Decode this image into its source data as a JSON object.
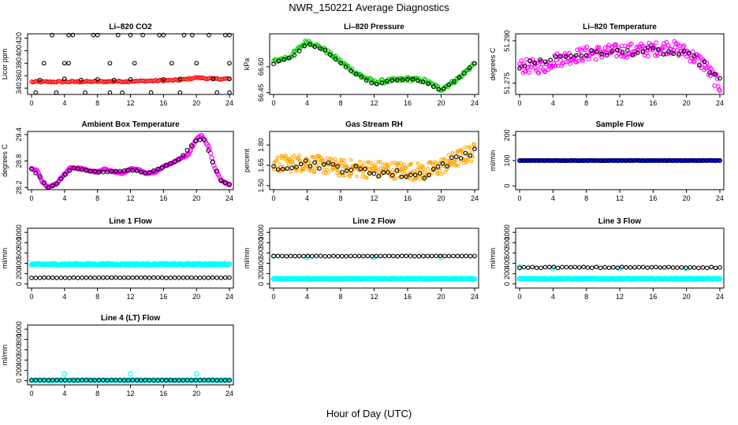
{
  "figure": {
    "title": "NWR_150221  Average Diagnostics",
    "xlabel": "Hour of Day (UTC)",
    "colors": {
      "red": "#ff0000",
      "green": "#00cc00",
      "magenta": "#ff00ff",
      "orange": "#ffa500",
      "blue": "#0000ff",
      "cyan": "#00ffff",
      "black": "#000000"
    }
  },
  "chart_data": [
    {
      "type": "scatter",
      "title": "Li-820 CO2",
      "ylabel": "Licor ppm",
      "xlim": [
        0,
        24
      ],
      "xticks": [
        0,
        4,
        8,
        12,
        16,
        20,
        24
      ],
      "ylim": [
        330,
        427
      ],
      "yticks": [
        340,
        360,
        380,
        400,
        420
      ],
      "series": [
        {
          "color": "red",
          "pattern": "piecewise",
          "points": [
            [
              0,
              350
            ],
            [
              12,
              351
            ],
            [
              18,
              353
            ],
            [
              20,
              357
            ],
            [
              22,
              355
            ],
            [
              24,
              355
            ]
          ],
          "n": 130,
          "jitter": 1.2,
          "size": 2.2
        },
        {
          "color": "black",
          "pattern": "scatter",
          "points": [
            [
              2.5,
              425
            ],
            [
              4.5,
              425
            ],
            [
              5,
              425
            ],
            [
              7.5,
              425
            ],
            [
              8,
              425
            ],
            [
              10.5,
              425
            ],
            [
              12,
              425
            ],
            [
              13.5,
              425
            ],
            [
              15.5,
              425
            ],
            [
              16,
              425
            ],
            [
              18.5,
              425
            ],
            [
              19.5,
              425
            ],
            [
              21.5,
              425
            ],
            [
              23.5,
              425
            ],
            [
              24,
              425
            ],
            [
              1.5,
              380
            ],
            [
              4,
              380
            ],
            [
              4.5,
              380
            ],
            [
              9.5,
              380
            ],
            [
              12.5,
              380
            ],
            [
              17,
              380
            ],
            [
              20,
              380
            ],
            [
              24,
              380
            ],
            [
              1,
              353
            ],
            [
              4,
              355
            ],
            [
              6,
              353
            ],
            [
              8,
              354
            ],
            [
              10,
              353
            ],
            [
              12,
              354
            ],
            [
              16,
              354
            ],
            [
              18,
              355
            ],
            [
              22,
              355
            ],
            [
              24,
              355
            ],
            [
              0.5,
              333
            ],
            [
              3,
              333
            ],
            [
              6.5,
              333
            ],
            [
              9.5,
              333
            ],
            [
              11,
              333
            ],
            [
              14.5,
              333
            ],
            [
              18,
              333
            ],
            [
              22.5,
              333
            ],
            [
              24,
              333
            ]
          ],
          "size": 2.3
        }
      ]
    },
    {
      "type": "scatter",
      "title": "Li-820 Pressure",
      "ylabel": "kPa",
      "xlim": [
        0,
        24
      ],
      "xticks": [
        0,
        4,
        8,
        12,
        16,
        20,
        24
      ],
      "ylim": [
        66.44,
        66.79
      ],
      "yticks": [
        66.45,
        66.6
      ],
      "series": [
        {
          "color": "green",
          "pattern": "piecewise",
          "points": [
            [
              0,
              66.63
            ],
            [
              2,
              66.66
            ],
            [
              4,
              66.75
            ],
            [
              6,
              66.7
            ],
            [
              8,
              66.63
            ],
            [
              10,
              66.56
            ],
            [
              12,
              66.51
            ],
            [
              14,
              66.52
            ],
            [
              16,
              66.53
            ],
            [
              18,
              66.52
            ],
            [
              20,
              66.47
            ],
            [
              22,
              66.53
            ],
            [
              24,
              66.62
            ]
          ],
          "n": 160,
          "jitter": 0.012,
          "size": 2.3
        },
        {
          "color": "black",
          "pattern": "piecewise",
          "points": [
            [
              0,
              66.62
            ],
            [
              2,
              66.65
            ],
            [
              4,
              66.73
            ],
            [
              6,
              66.7
            ],
            [
              8,
              66.62
            ],
            [
              10,
              66.55
            ],
            [
              12,
              66.5
            ],
            [
              14,
              66.52
            ],
            [
              16,
              66.53
            ],
            [
              18,
              66.51
            ],
            [
              20,
              66.46
            ],
            [
              22,
              66.53
            ],
            [
              24,
              66.62
            ]
          ],
          "n": 40,
          "jitter": 0.004,
          "size": 2.3
        }
      ]
    },
    {
      "type": "scatter",
      "title": "Li-820 Temperature",
      "ylabel": "degrees C",
      "xlim": [
        0,
        24
      ],
      "xticks": [
        0,
        4,
        8,
        12,
        16,
        20,
        24
      ],
      "ylim": [
        51.271,
        51.2925
      ],
      "yticks": [
        51.275,
        51.29
      ],
      "series": [
        {
          "color": "magenta",
          "pattern": "piecewise",
          "points": [
            [
              0,
              51.281
            ],
            [
              3,
              51.281
            ],
            [
              4,
              51.283
            ],
            [
              8,
              51.2855
            ],
            [
              12,
              51.2865
            ],
            [
              16,
              51.287
            ],
            [
              18,
              51.288
            ],
            [
              20,
              51.286
            ],
            [
              22,
              51.282
            ],
            [
              24,
              51.274
            ]
          ],
          "n": 230,
          "jitter": 0.0025,
          "size": 2.3
        },
        {
          "color": "black",
          "pattern": "piecewise",
          "points": [
            [
              0,
              51.281
            ],
            [
              4,
              51.284
            ],
            [
              8,
              51.2855
            ],
            [
              12,
              51.286
            ],
            [
              16,
              51.2865
            ],
            [
              20,
              51.285
            ],
            [
              22,
              51.282
            ],
            [
              24,
              51.276
            ]
          ],
          "n": 40,
          "jitter": 0.0012,
          "size": 2.3
        }
      ]
    },
    {
      "type": "scatter",
      "title": "Ambient Box Temperature",
      "ylabel": "degrees C",
      "xlim": [
        0,
        24
      ],
      "xticks": [
        0,
        4,
        8,
        12,
        16,
        20,
        24
      ],
      "ylim": [
        28.15,
        29.47
      ],
      "yticks": [
        28.2,
        28.8,
        29.4
      ],
      "series": [
        {
          "color": "magenta",
          "pattern": "piecewise",
          "points": [
            [
              0,
              28.62
            ],
            [
              0.7,
              28.58
            ],
            [
              1.3,
              28.32
            ],
            [
              2,
              28.2
            ],
            [
              3,
              28.28
            ],
            [
              4,
              28.5
            ],
            [
              4.7,
              28.65
            ],
            [
              6,
              28.63
            ],
            [
              7,
              28.58
            ],
            [
              8,
              28.55
            ],
            [
              9,
              28.62
            ],
            [
              10,
              28.55
            ],
            [
              11,
              28.52
            ],
            [
              12,
              28.62
            ],
            [
              13,
              28.6
            ],
            [
              14,
              28.52
            ],
            [
              15,
              28.55
            ],
            [
              16,
              28.68
            ],
            [
              17,
              28.75
            ],
            [
              18,
              28.85
            ],
            [
              19,
              28.95
            ],
            [
              20,
              29.3
            ],
            [
              20.6,
              29.38
            ],
            [
              21.5,
              29.12
            ],
            [
              22.2,
              28.65
            ],
            [
              23,
              28.35
            ],
            [
              24,
              28.27
            ]
          ],
          "n": 180,
          "jitter": 0.012,
          "size": 2.6
        },
        {
          "color": "black",
          "pattern": "piecewise",
          "points": [
            [
              0,
              28.62
            ],
            [
              1,
              28.45
            ],
            [
              2,
              28.2
            ],
            [
              3,
              28.28
            ],
            [
              4,
              28.48
            ],
            [
              5,
              28.64
            ],
            [
              8,
              28.55
            ],
            [
              10,
              28.56
            ],
            [
              12,
              28.6
            ],
            [
              14,
              28.52
            ],
            [
              16,
              28.66
            ],
            [
              18,
              28.85
            ],
            [
              20,
              29.28
            ],
            [
              21,
              29.28
            ],
            [
              22,
              28.75
            ],
            [
              23,
              28.35
            ],
            [
              24,
              28.27
            ]
          ],
          "n": 48,
          "jitter": 0.008,
          "size": 2.4
        }
      ]
    },
    {
      "type": "scatter",
      "title": "Gas Stream RH",
      "ylabel": "percent",
      "xlim": [
        0,
        24
      ],
      "xticks": [
        0,
        4,
        8,
        12,
        16,
        20,
        24
      ],
      "ylim": [
        1.47,
        1.9
      ],
      "yticks": [
        1.5,
        1.65,
        1.8
      ],
      "series": [
        {
          "color": "orange",
          "pattern": "piecewise",
          "points": [
            [
              0,
              1.66
            ],
            [
              4,
              1.67
            ],
            [
              8,
              1.63
            ],
            [
              12,
              1.62
            ],
            [
              16,
              1.61
            ],
            [
              18,
              1.6
            ],
            [
              20,
              1.64
            ],
            [
              22,
              1.7
            ],
            [
              24,
              1.75
            ]
          ],
          "n": 320,
          "jitter": 0.065,
          "size": 1.8
        },
        {
          "color": "black",
          "pattern": "piecewise",
          "points": [
            [
              0,
              1.64
            ],
            [
              4,
              1.67
            ],
            [
              8,
              1.63
            ],
            [
              12,
              1.6
            ],
            [
              16,
              1.58
            ],
            [
              18,
              1.58
            ],
            [
              20,
              1.65
            ],
            [
              22,
              1.7
            ],
            [
              24,
              1.77
            ]
          ],
          "n": 45,
          "jitter": 0.03,
          "size": 2.3
        }
      ]
    },
    {
      "type": "scatter",
      "title": "Sample Flow",
      "ylabel": "ml/min",
      "xlim": [
        0,
        24
      ],
      "xticks": [
        0,
        4,
        8,
        12,
        16,
        20,
        24
      ],
      "ylim": [
        -15,
        215
      ],
      "yticks": [
        0,
        100,
        200
      ],
      "series": [
        {
          "color": "blue",
          "pattern": "constant",
          "value": 100,
          "n": 200,
          "jitter": 0.5,
          "size": 2.3
        },
        {
          "color": "black",
          "pattern": "constant",
          "value": 100,
          "n": 48,
          "jitter": 0.2,
          "size": 2.3
        }
      ]
    },
    {
      "type": "scatter",
      "title": "Line 1 Flow",
      "ylabel": "ml/min",
      "xlim": [
        0,
        24
      ],
      "xticks": [
        0,
        4,
        8,
        12,
        16,
        20,
        24
      ],
      "ylim": [
        -80,
        1080
      ],
      "yticks": [
        0,
        200,
        400,
        600,
        800,
        1000
      ],
      "series": [
        {
          "color": "cyan",
          "pattern": "constant",
          "value": 380,
          "n": 220,
          "jitter": 14,
          "size": 2.8
        },
        {
          "color": "black",
          "pattern": "constant",
          "value": 120,
          "n": 48,
          "jitter": 3,
          "size": 2.3
        }
      ]
    },
    {
      "type": "scatter",
      "title": "Line 2 Flow",
      "ylabel": "ml/min",
      "xlim": [
        0,
        24
      ],
      "xticks": [
        0,
        4,
        8,
        12,
        16,
        20,
        24
      ],
      "ylim": [
        -80,
        1080
      ],
      "yticks": [
        0,
        200,
        400,
        600,
        800,
        1000
      ],
      "series": [
        {
          "color": "cyan",
          "pattern": "constant",
          "value": 100,
          "n": 220,
          "jitter": 6,
          "size": 2.8
        },
        {
          "color": "cyan",
          "pattern": "scatter",
          "points": [
            [
              0,
              540
            ],
            [
              4,
              510
            ],
            [
              12,
              520
            ],
            [
              20,
              510
            ]
          ],
          "size": 2.8
        },
        {
          "color": "black",
          "pattern": "constant",
          "value": 540,
          "n": 48,
          "jitter": 4,
          "size": 2.3
        }
      ]
    },
    {
      "type": "scatter",
      "title": "Line 3 Flow",
      "ylabel": "ml/min",
      "xlim": [
        0,
        24
      ],
      "xticks": [
        0,
        4,
        8,
        12,
        16,
        20,
        24
      ],
      "ylim": [
        -80,
        1080
      ],
      "yticks": [
        0,
        200,
        400,
        600,
        800,
        1000
      ],
      "series": [
        {
          "color": "cyan",
          "pattern": "constant",
          "value": 100,
          "n": 220,
          "jitter": 7,
          "size": 2.8
        },
        {
          "color": "cyan",
          "pattern": "scatter",
          "points": [
            [
              0,
              330
            ],
            [
              4,
              300
            ],
            [
              12,
              300
            ],
            [
              20,
              300
            ]
          ],
          "size": 2.8
        },
        {
          "color": "black",
          "pattern": "constant",
          "value": 320,
          "n": 48,
          "jitter": 10,
          "size": 2.3
        }
      ]
    },
    {
      "type": "scatter",
      "title": "Line 4 (LT) Flow",
      "ylabel": "ml/min",
      "xlim": [
        0,
        24
      ],
      "xticks": [
        0,
        4,
        8,
        12,
        16,
        20,
        24
      ],
      "ylim": [
        -80,
        1080
      ],
      "yticks": [
        0,
        200,
        400,
        600,
        800,
        1000
      ],
      "series": [
        {
          "color": "cyan",
          "pattern": "constant",
          "value": 10,
          "n": 200,
          "jitter": 4,
          "size": 2.8
        },
        {
          "color": "cyan",
          "pattern": "scatter",
          "points": [
            [
              4,
              130
            ],
            [
              12,
              130
            ],
            [
              20,
              130
            ]
          ],
          "size": 2.8
        },
        {
          "color": "black",
          "pattern": "constant",
          "value": 10,
          "n": 48,
          "jitter": 2,
          "size": 2.3
        }
      ]
    }
  ]
}
